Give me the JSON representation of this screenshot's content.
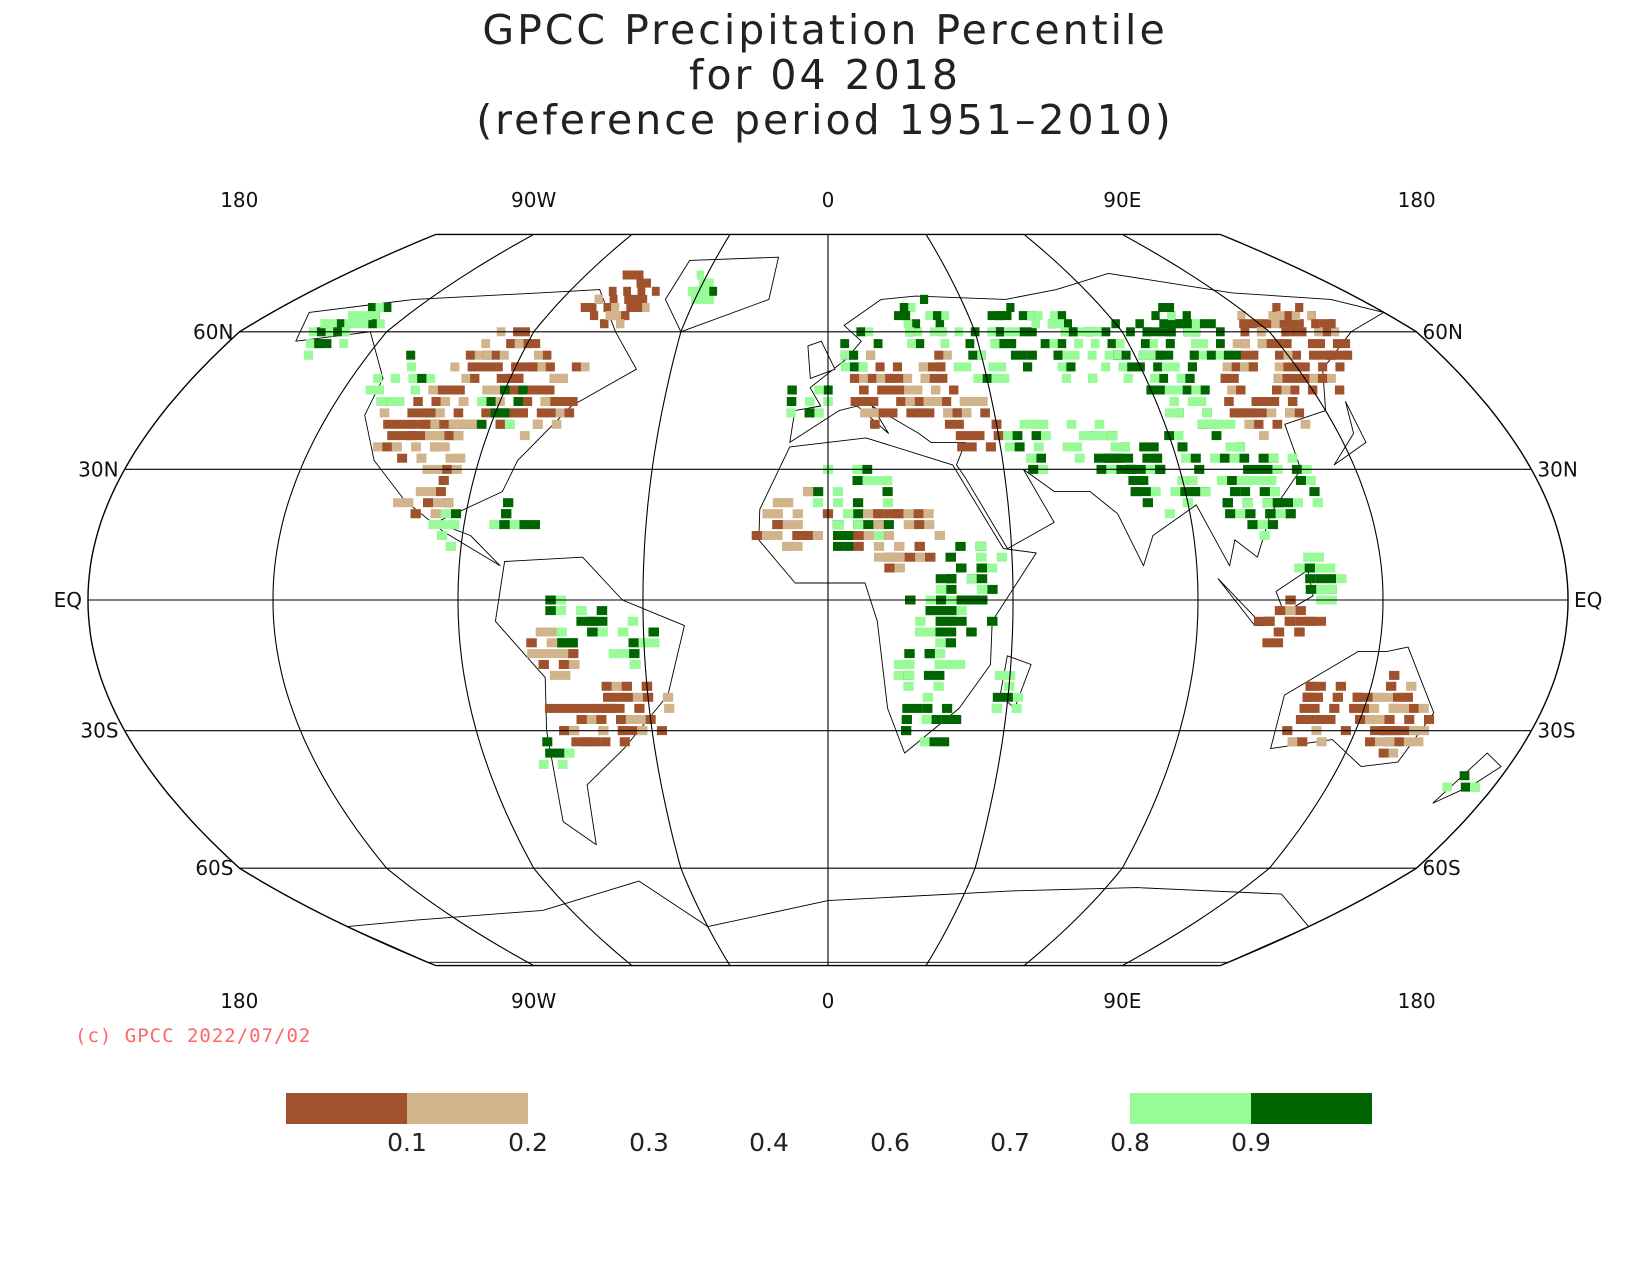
{
  "title": {
    "line1": "GPCC Precipitation Percentile",
    "line2": "for 04 2018",
    "line3": "(reference period 1951–2010)"
  },
  "map": {
    "projection": "Robinson",
    "lon_labels": [
      "180",
      "90W",
      "0",
      "90E",
      "180"
    ],
    "lat_labels_left": [
      "60N",
      "30N",
      "EQ",
      "30S",
      "60S"
    ],
    "lat_labels_right": [
      "60N",
      "30N",
      "EQ",
      "30S",
      "60S"
    ]
  },
  "credit": "(c) GPCC 2022/07/02",
  "colors": {
    "very_dry": "#a0522d",
    "dry": "#d2b48c",
    "wet": "#98fb98",
    "very_wet": "#006400",
    "credit": "#ff6666",
    "coast": "#000000"
  },
  "legend": {
    "tick_labels": [
      "0.1",
      "0.2",
      "0.3",
      "0.4",
      "0.6",
      "0.7",
      "0.8",
      "0.9"
    ],
    "classes": [
      {
        "range": "< 0.1",
        "color": "#a0522d"
      },
      {
        "range": "0.1 - 0.2",
        "color": "#d2b48c"
      },
      {
        "range": "0.8 - 0.9",
        "color": "#98fb98"
      },
      {
        "range": "> 0.9",
        "color": "#006400"
      }
    ]
  }
}
